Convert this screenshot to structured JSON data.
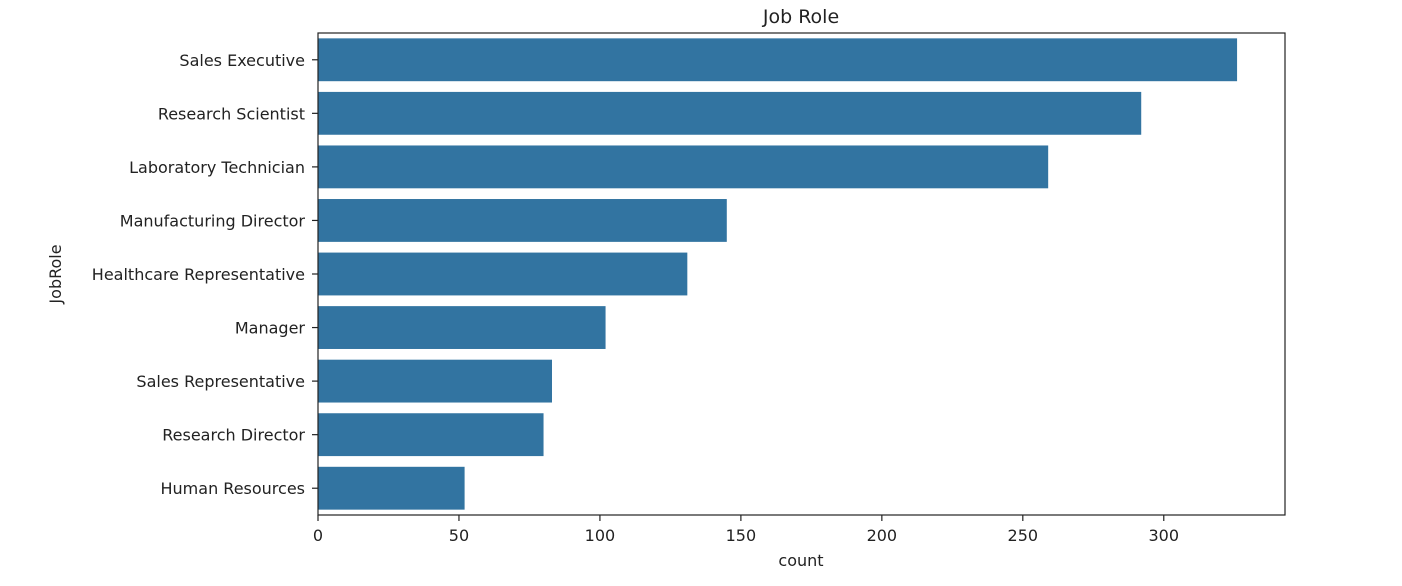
{
  "chart_data": {
    "type": "bar",
    "orientation": "horizontal",
    "title": "Job Role",
    "xlabel": "count",
    "ylabel": "JobRole",
    "categories": [
      "Sales Executive",
      "Research Scientist",
      "Laboratory Technician",
      "Manufacturing Director",
      "Healthcare Representative",
      "Manager",
      "Sales Representative",
      "Research Director",
      "Human Resources"
    ],
    "values": [
      326,
      292,
      259,
      145,
      131,
      102,
      83,
      80,
      52
    ],
    "xlim": [
      0,
      343
    ],
    "xticks": [
      0,
      50,
      100,
      150,
      200,
      250,
      300
    ],
    "bar_color": "#3274a1",
    "grid": false
  }
}
